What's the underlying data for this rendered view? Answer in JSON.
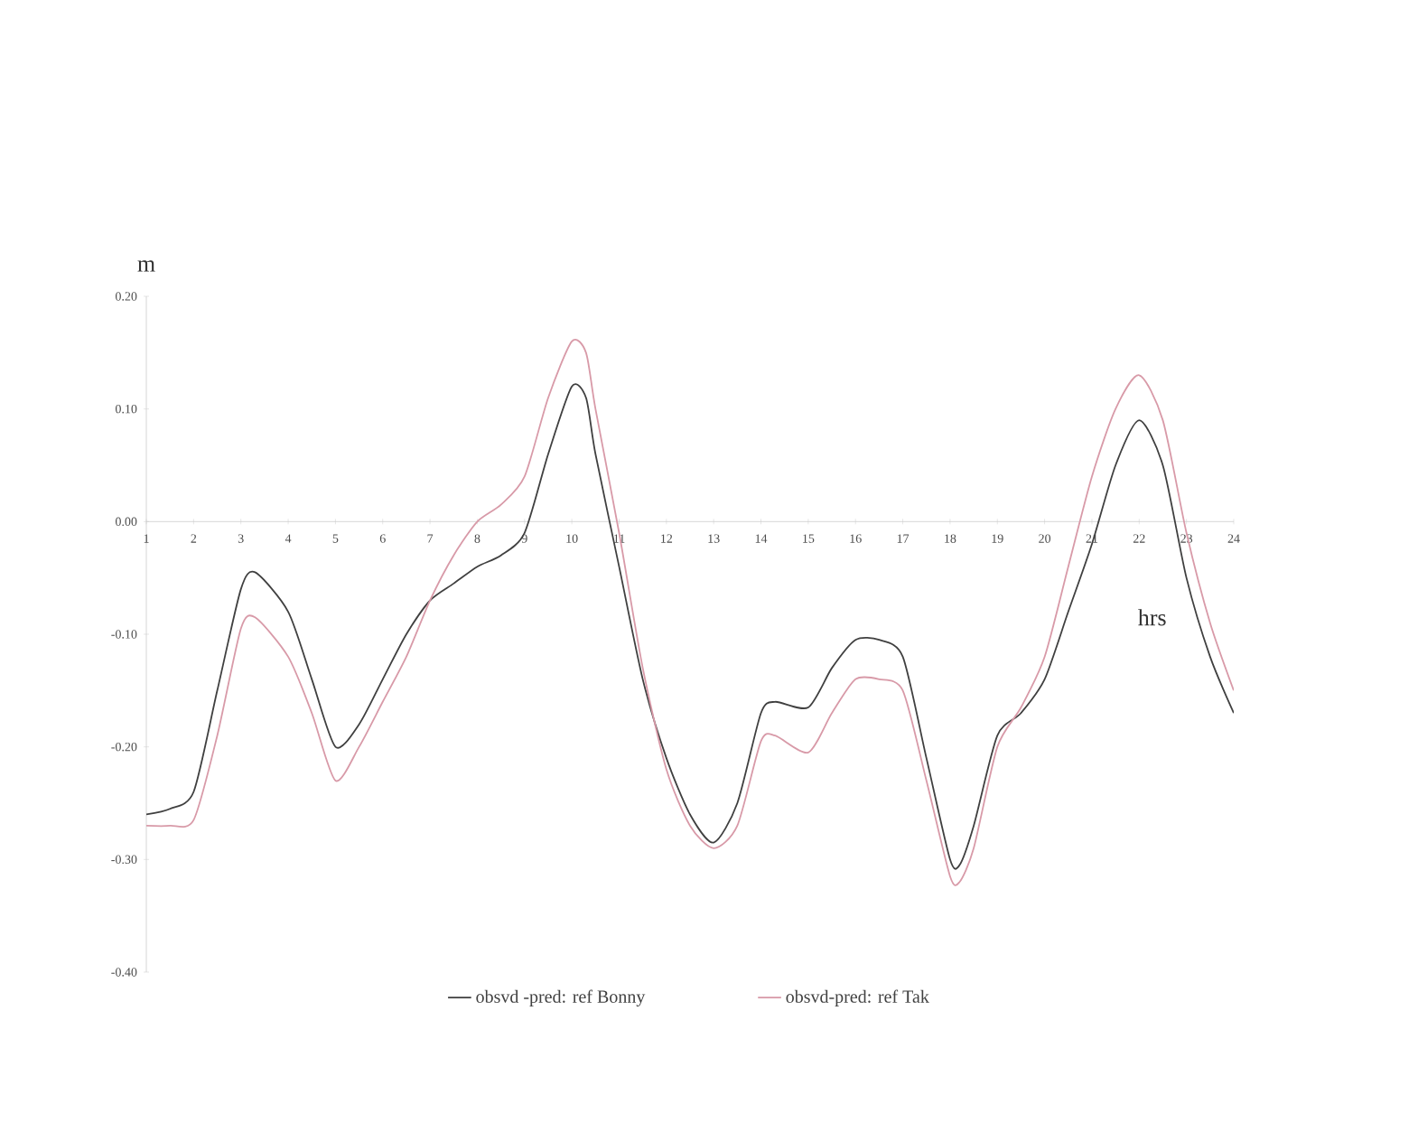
{
  "chart_data": {
    "type": "line",
    "xlabel": "hrs",
    "ylabel": "m",
    "xlim": [
      1,
      24
    ],
    "ylim": [
      -0.4,
      0.2
    ],
    "xticks": [
      1,
      2,
      3,
      4,
      5,
      6,
      7,
      8,
      9,
      10,
      11,
      12,
      13,
      14,
      15,
      16,
      17,
      18,
      19,
      20,
      21,
      22,
      23,
      24
    ],
    "yticks": [
      {
        "value": -0.4,
        "label": "-0.40"
      },
      {
        "value": -0.3,
        "label": "-0.30"
      },
      {
        "value": -0.2,
        "label": "-0.20"
      },
      {
        "value": -0.1,
        "label": "-0.10"
      },
      {
        "value": 0,
        "label": "0.00"
      },
      {
        "value": 0.1,
        "label": "0.10"
      },
      {
        "value": 0.2,
        "label": "0.20"
      }
    ],
    "grid": false,
    "legend": "bottom",
    "marker": "none",
    "line_style": "solid",
    "x": [
      1,
      1.5,
      2,
      2.5,
      3,
      3.3,
      4,
      4.5,
      5,
      5.5,
      6,
      6.5,
      7,
      7.5,
      8,
      8.5,
      9,
      9.5,
      10,
      10.3,
      10.5,
      11,
      11.5,
      12,
      12.5,
      13,
      13.5,
      14,
      14.3,
      15,
      15.5,
      16,
      16.5,
      17,
      17.5,
      18,
      18.2,
      18.5,
      19,
      19.5,
      20,
      20.5,
      21,
      21.5,
      22,
      22.5,
      23,
      23.5,
      24
    ],
    "series": [
      {
        "name": "obsvd -pred: ref Bonny",
        "color": "#404040",
        "values": [
          -0.26,
          -0.255,
          -0.24,
          -0.15,
          -0.06,
          -0.045,
          -0.08,
          -0.14,
          -0.2,
          -0.18,
          -0.14,
          -0.1,
          -0.07,
          -0.055,
          -0.04,
          -0.03,
          -0.01,
          0.06,
          0.12,
          0.11,
          0.06,
          -0.04,
          -0.14,
          -0.21,
          -0.26,
          -0.285,
          -0.25,
          -0.17,
          -0.16,
          -0.165,
          -0.13,
          -0.105,
          -0.105,
          -0.12,
          -0.21,
          -0.3,
          -0.305,
          -0.27,
          -0.19,
          -0.17,
          -0.14,
          -0.08,
          -0.02,
          0.05,
          0.09,
          0.05,
          -0.05,
          -0.12,
          -0.17
        ]
      },
      {
        "name": "obsvd-pred: ref Tak",
        "color": "#d89aa8",
        "values": [
          -0.27,
          -0.27,
          -0.265,
          -0.19,
          -0.095,
          -0.085,
          -0.12,
          -0.17,
          -0.23,
          -0.2,
          -0.16,
          -0.12,
          -0.07,
          -0.03,
          0.0,
          0.015,
          0.04,
          0.11,
          0.16,
          0.15,
          0.1,
          -0.01,
          -0.13,
          -0.22,
          -0.27,
          -0.29,
          -0.27,
          -0.195,
          -0.19,
          -0.205,
          -0.17,
          -0.14,
          -0.14,
          -0.15,
          -0.23,
          -0.315,
          -0.32,
          -0.29,
          -0.2,
          -0.165,
          -0.12,
          -0.04,
          0.04,
          0.1,
          0.13,
          0.09,
          -0.01,
          -0.09,
          -0.15
        ]
      }
    ]
  }
}
